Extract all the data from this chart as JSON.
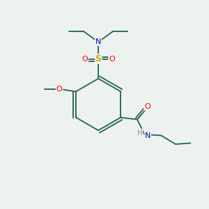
{
  "background_color": "#eef2ee",
  "bond_color": "#2d6b5e",
  "atom_colors": {
    "N": "#0000ff",
    "O": "#ff0000",
    "S": "#ccaa00",
    "H": "#888888",
    "C": "#2d6b5e"
  },
  "figsize": [
    3.0,
    3.0
  ],
  "dpi": 100
}
